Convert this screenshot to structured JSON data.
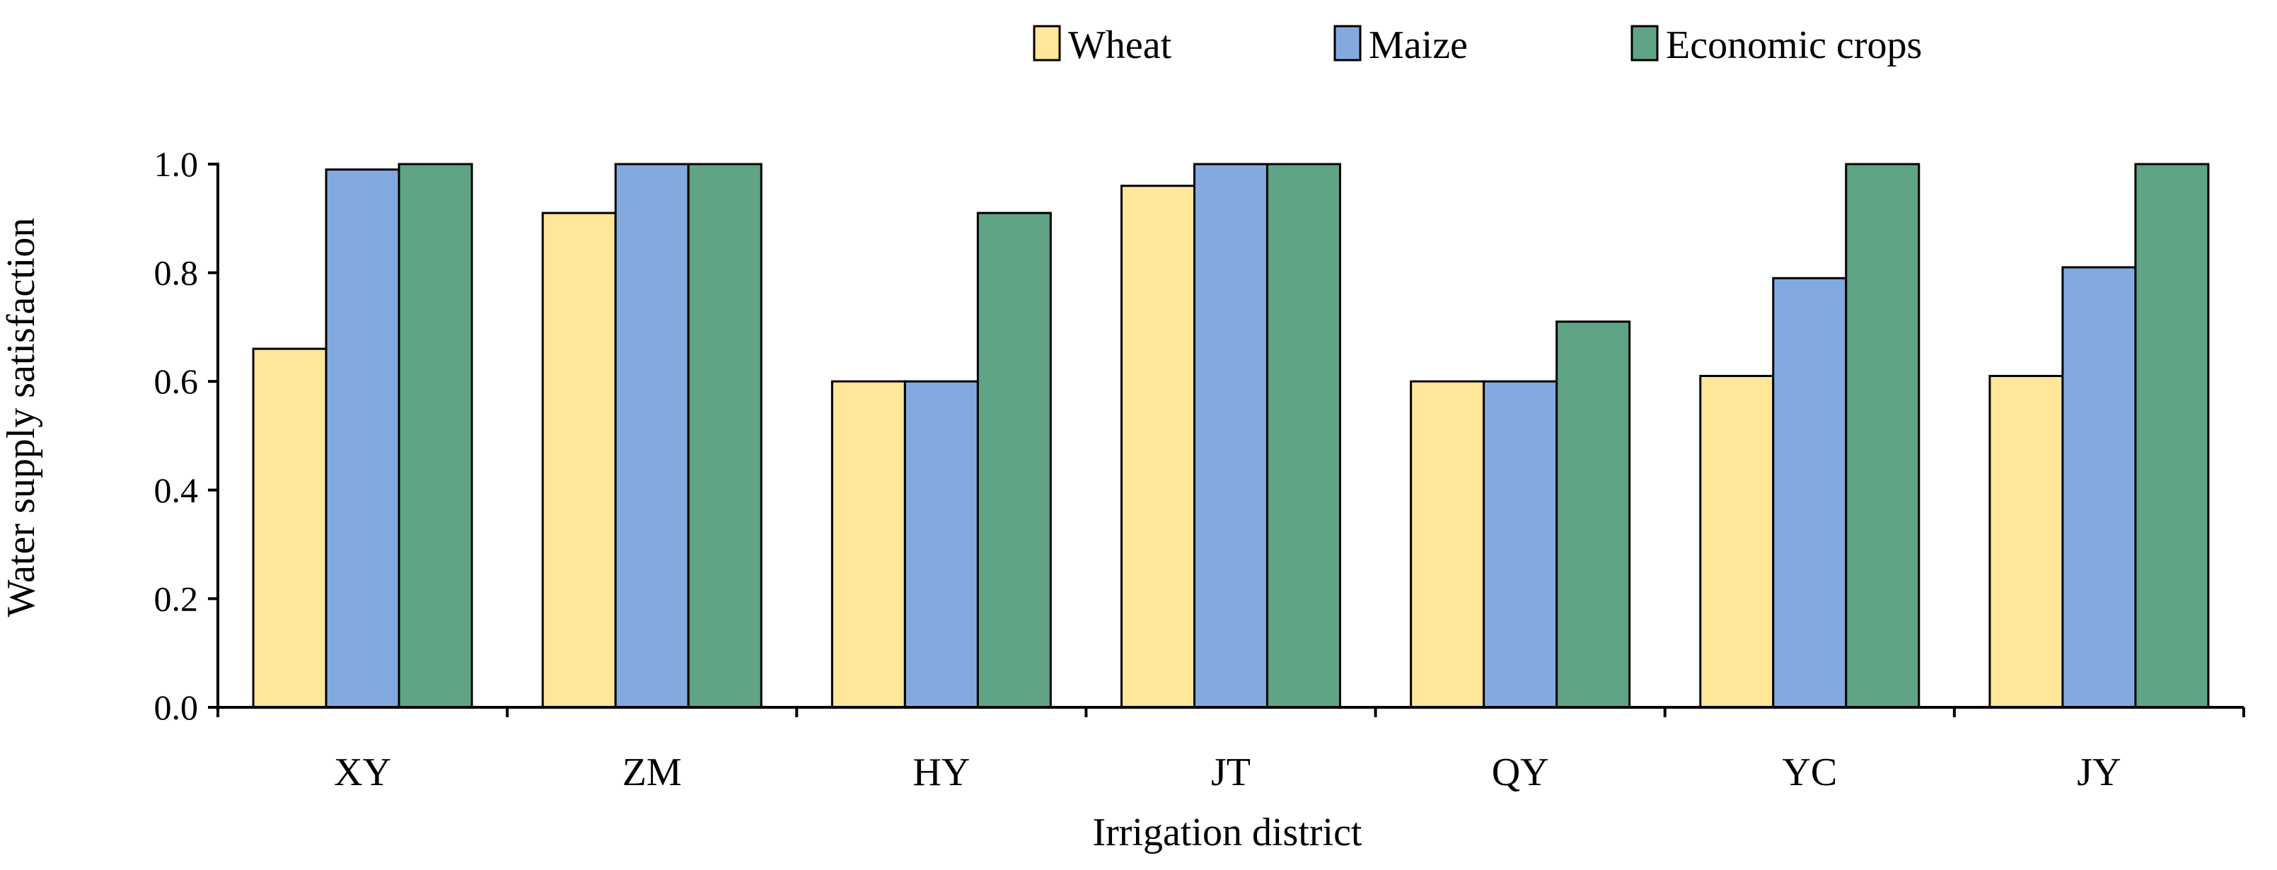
{
  "chart_data": {
    "type": "bar",
    "title": "",
    "xlabel": "Irrigation district",
    "ylabel": "Water supply satisfaction",
    "ylim": [
      0.0,
      1.0
    ],
    "yticks": [
      "0.0",
      "0.2",
      "0.4",
      "0.6",
      "0.8",
      "1.0"
    ],
    "grid": false,
    "legend_position": "top-right",
    "categories": [
      "XY",
      "ZM",
      "HY",
      "JT",
      "QY",
      "YC",
      "JY"
    ],
    "series": [
      {
        "name": "Wheat",
        "color": "#FFE699",
        "values": [
          0.66,
          0.91,
          0.6,
          0.96,
          0.6,
          0.61,
          0.61
        ]
      },
      {
        "name": "Maize",
        "color": "#82AADF",
        "values": [
          0.99,
          1.0,
          0.6,
          1.0,
          0.6,
          0.79,
          0.81
        ]
      },
      {
        "name": "Economic crops",
        "color": "#5FA585",
        "values": [
          1.0,
          1.0,
          0.91,
          1.0,
          0.71,
          1.0,
          1.0
        ]
      }
    ]
  }
}
